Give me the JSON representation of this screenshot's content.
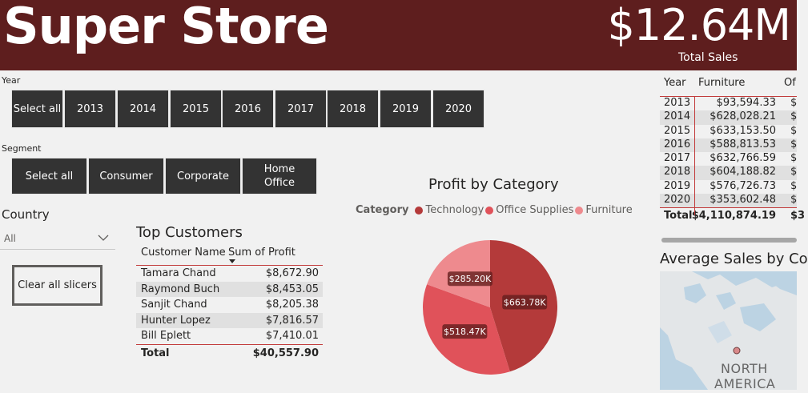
{
  "header": {
    "title": "Super Store",
    "kpi_value": "$12.64M",
    "kpi_label": "Total Sales"
  },
  "year_slicer": {
    "label": "Year",
    "options": [
      "Select all",
      "2013",
      "2014",
      "2015",
      "2016",
      "2017",
      "2018",
      "2019",
      "2020"
    ]
  },
  "segment_slicer": {
    "label": "Segment",
    "options": [
      "Select all",
      "Consumer",
      "Corporate",
      "Home Office"
    ]
  },
  "country_slicer": {
    "label": "Country",
    "value": "All"
  },
  "clear_button": "Clear all slicers",
  "top_customers": {
    "title": "Top Customers",
    "columns": [
      "Customer Name",
      "Sum of Profit"
    ],
    "rows": [
      {
        "name": "Tamara Chand",
        "profit": "$8,672.90"
      },
      {
        "name": "Raymond Buch",
        "profit": "$8,453.05"
      },
      {
        "name": "Sanjit Chand",
        "profit": "$8,205.38"
      },
      {
        "name": "Hunter Lopez",
        "profit": "$7,816.57"
      },
      {
        "name": "Bill Eplett",
        "profit": "$7,410.01"
      }
    ],
    "total_label": "Total",
    "total_value": "$40,557.90"
  },
  "chart_data": {
    "type": "pie",
    "title": "Profit by Category",
    "legend_title": "Category",
    "legend_position": "top",
    "categories": [
      "Technology",
      "Office Supplies",
      "Furniture"
    ],
    "values": [
      663.78,
      518.47,
      285.2
    ],
    "labels": [
      "$663.78K",
      "$518.47K",
      "$285.20K"
    ],
    "colors": [
      "#b43a3a",
      "#e0525a",
      "#ee8a8e"
    ]
  },
  "sales_table": {
    "columns": [
      "Year",
      "Furniture",
      "Of"
    ],
    "rows": [
      {
        "year": "2013",
        "furniture": "$93,594.33",
        "office": "$"
      },
      {
        "year": "2014",
        "furniture": "$628,028.21",
        "office": "$"
      },
      {
        "year": "2015",
        "furniture": "$633,153.50",
        "office": "$"
      },
      {
        "year": "2016",
        "furniture": "$588,813.53",
        "office": "$"
      },
      {
        "year": "2017",
        "furniture": "$632,766.59",
        "office": "$"
      },
      {
        "year": "2018",
        "furniture": "$604,188.82",
        "office": "$"
      },
      {
        "year": "2019",
        "furniture": "$576,726.73",
        "office": "$"
      },
      {
        "year": "2020",
        "furniture": "$353,602.48",
        "office": "$"
      }
    ],
    "total_label": "Total",
    "total_furniture": "$4,110,874.19",
    "total_office": "$3"
  },
  "map": {
    "title": "Average Sales by Co",
    "label_line1": "NORTH",
    "label_line2": "AMERICA"
  },
  "colors": {
    "header_bg": "#5e1e1e",
    "tile_bg": "#333333",
    "accent": "#c23b3b"
  }
}
